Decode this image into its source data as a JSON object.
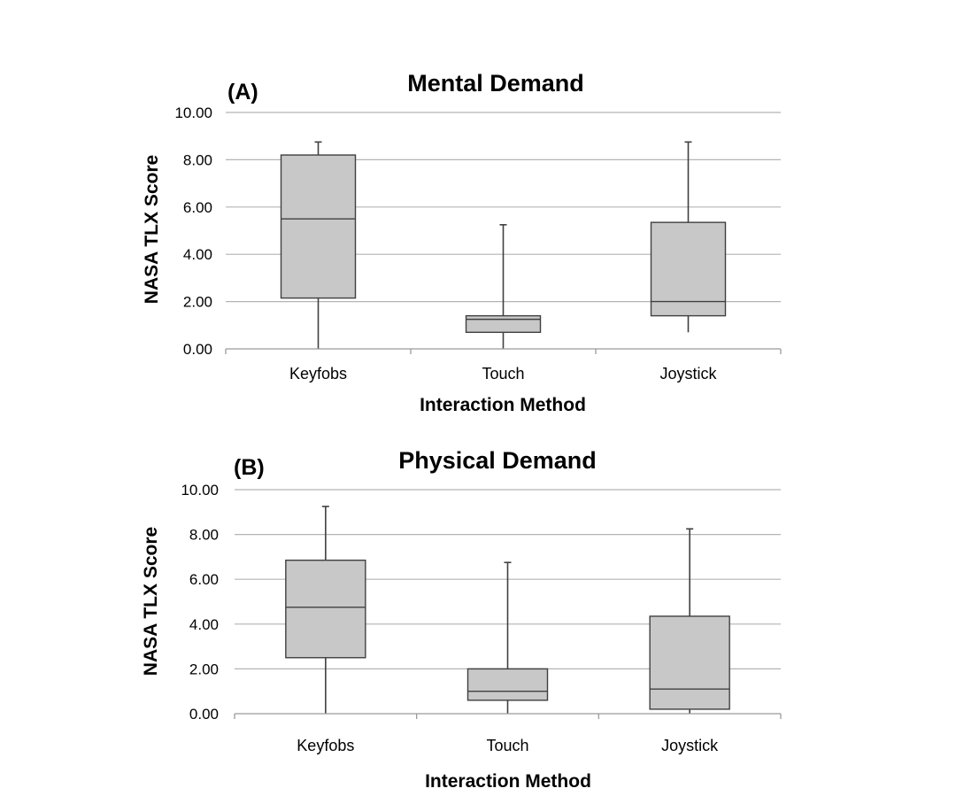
{
  "chart_data": [
    {
      "type": "box",
      "panel_label": "(A)",
      "title": "Mental Demand",
      "xlabel": "Interaction Method",
      "ylabel": "NASA TLX Score",
      "ylim": [
        0,
        10
      ],
      "yticks": [
        "0.00",
        "2.00",
        "4.00",
        "6.00",
        "8.00",
        "10.00"
      ],
      "grid": true,
      "categories": [
        "Keyfobs",
        "Touch",
        "Joystick"
      ],
      "boxes": [
        {
          "min": 0.0,
          "q1": 2.15,
          "median": 5.5,
          "q3": 8.2,
          "max": 8.75
        },
        {
          "min": 0.0,
          "q1": 0.7,
          "median": 1.25,
          "q3": 1.4,
          "max": 5.25
        },
        {
          "min": 0.7,
          "q1": 1.4,
          "median": 2.0,
          "q3": 5.35,
          "max": 8.75
        }
      ],
      "colors": {
        "box_fill": "#c8c8c8",
        "line": "#404040",
        "grid": "#b4b4b4"
      }
    },
    {
      "type": "box",
      "panel_label": "(B)",
      "title": "Physical Demand",
      "xlabel": "Interaction Method",
      "ylabel": "NASA TLX Score",
      "ylim": [
        0,
        10
      ],
      "yticks": [
        "0.00",
        "2.00",
        "4.00",
        "6.00",
        "8.00",
        "10.00"
      ],
      "grid": true,
      "categories": [
        "Keyfobs",
        "Touch",
        "Joystick"
      ],
      "boxes": [
        {
          "min": 0.0,
          "q1": 2.5,
          "median": 4.75,
          "q3": 6.85,
          "max": 9.25
        },
        {
          "min": 0.0,
          "q1": 0.6,
          "median": 1.0,
          "q3": 2.0,
          "max": 6.75
        },
        {
          "min": 0.0,
          "q1": 0.2,
          "median": 1.1,
          "q3": 4.35,
          "max": 8.25
        }
      ],
      "colors": {
        "box_fill": "#c8c8c8",
        "line": "#404040",
        "grid": "#b4b4b4"
      }
    }
  ]
}
